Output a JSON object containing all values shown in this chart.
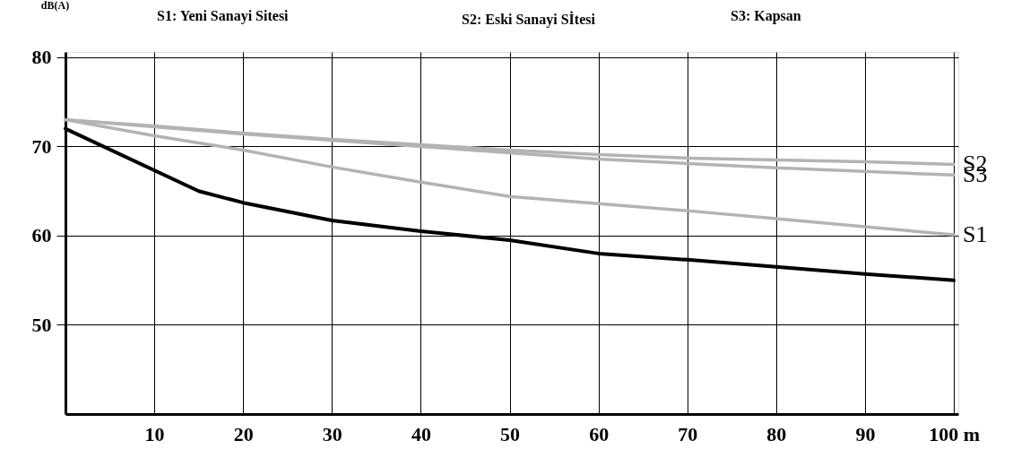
{
  "chart_data": {
    "type": "line",
    "ylabel": "dB(A)",
    "annotations": [
      "S1: Yeni Sanayi Sitesi",
      "S2: Eski Sanayi Sİtesi",
      "S3: Kapsan"
    ],
    "x": [
      0,
      10,
      20,
      30,
      40,
      50,
      60,
      70,
      80,
      90,
      100
    ],
    "series": [
      {
        "name": "S2",
        "color": "#b3b3b3",
        "values": [
          73,
          72.3,
          71.5,
          70.8,
          70.2,
          69.6,
          69.1,
          68.7,
          68.5,
          68.3,
          68.0
        ]
      },
      {
        "name": "S3",
        "color": "#b3b3b3",
        "values": [
          73,
          72.2,
          71.4,
          70.7,
          70.0,
          69.3,
          68.6,
          68.1,
          67.6,
          67.2,
          66.8
        ]
      },
      {
        "name": "S1",
        "color": "#b3b3b3",
        "values": [
          73,
          71.2,
          69.6,
          67.7,
          66.0,
          64.4,
          63.6,
          62.8,
          61.9,
          61.0,
          60.1
        ]
      },
      {
        "color": "#000000",
        "x": [
          0,
          15,
          20,
          30,
          40,
          50,
          60,
          70,
          80,
          90,
          100
        ],
        "values": [
          72,
          65,
          63.7,
          61.7,
          60.5,
          59.5,
          58.0,
          57.3,
          56.5,
          55.7,
          55.0
        ]
      }
    ],
    "xlim": [
      0,
      100.5
    ],
    "xticks": [
      10,
      20,
      30,
      40,
      50,
      60,
      70,
      80,
      90,
      {
        "value": 100,
        "label": "100 m"
      }
    ],
    "ylim": [
      40,
      80.6
    ],
    "yticks": [
      50,
      60,
      70,
      80
    ],
    "grid": true,
    "marker": "none",
    "line_style": "solid"
  }
}
